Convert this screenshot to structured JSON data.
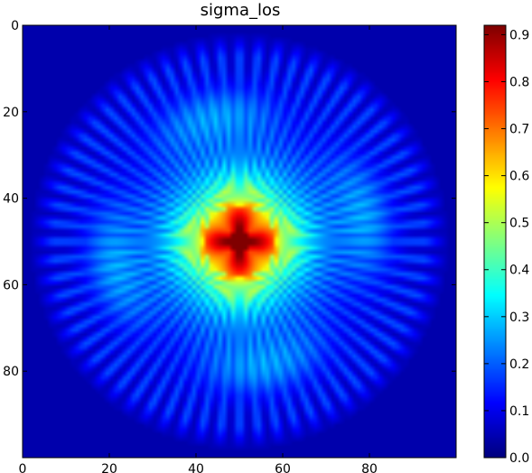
{
  "chart_data": {
    "type": "heatmap",
    "title": "sigma_los",
    "colormap": "jet",
    "x_range": [
      0,
      100
    ],
    "y_range": [
      0,
      100
    ],
    "y_inverted": true,
    "x_ticks": [
      0,
      20,
      40,
      60,
      80
    ],
    "y_ticks": [
      0,
      20,
      40,
      60,
      80
    ],
    "value_range": [
      0.0,
      0.92
    ],
    "colorbar_ticks": [
      0.0,
      0.1,
      0.2,
      0.3,
      0.4,
      0.5,
      0.6,
      0.7,
      0.8,
      0.9
    ],
    "colorbar_tick_labels": [
      "0.0",
      "0.1",
      "0.2",
      "0.3",
      "0.4",
      "0.5",
      "0.6",
      "0.7",
      "0.8",
      "0.9"
    ],
    "peak": {
      "x": 50,
      "y": 50,
      "value": 0.92
    },
    "outer_radius": 48,
    "ray_count": 64
  }
}
